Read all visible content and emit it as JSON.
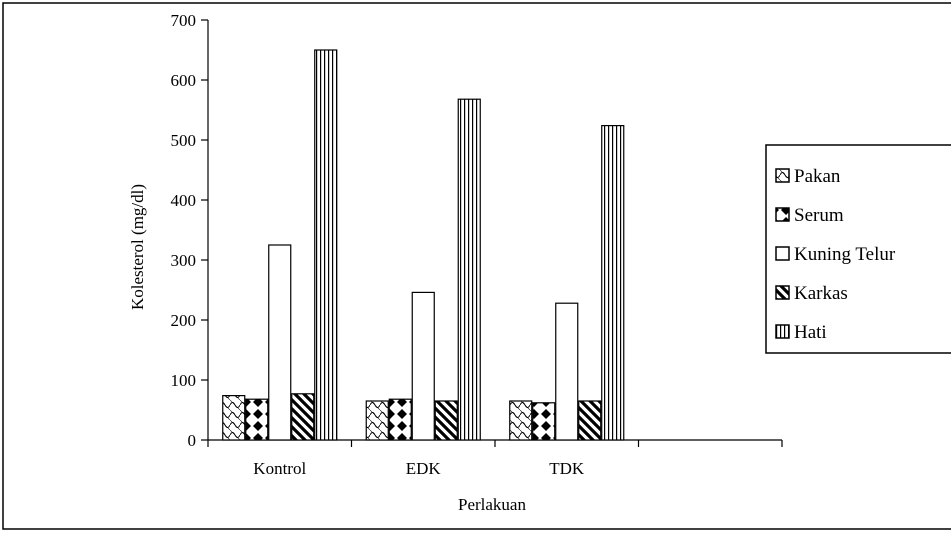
{
  "chart_data": {
    "type": "bar",
    "title": "",
    "xlabel": "Perlakuan",
    "ylabel": "Kolesterol (mg/dl)",
    "ylim": [
      0,
      700
    ],
    "yticks": [
      "0",
      "100",
      "200",
      "300",
      "400",
      "500",
      "600",
      "700"
    ],
    "categories": [
      "Kontrol",
      "EDK",
      "TDK",
      ""
    ],
    "series": [
      {
        "name": "Pakan",
        "values": [
          74,
          65,
          65,
          null
        ],
        "pattern": "waves"
      },
      {
        "name": "Serum",
        "values": [
          68,
          68,
          62,
          null
        ],
        "pattern": "diamonds"
      },
      {
        "name": "Kuning Telur",
        "values": [
          325,
          246,
          228,
          null
        ],
        "pattern": "none"
      },
      {
        "name": "Karkas",
        "values": [
          77,
          65,
          65,
          null
        ],
        "pattern": "diagonal"
      },
      {
        "name": "Hati",
        "values": [
          650,
          568,
          524,
          null
        ],
        "pattern": "vertical"
      }
    ],
    "grid": false,
    "legend": "right"
  }
}
